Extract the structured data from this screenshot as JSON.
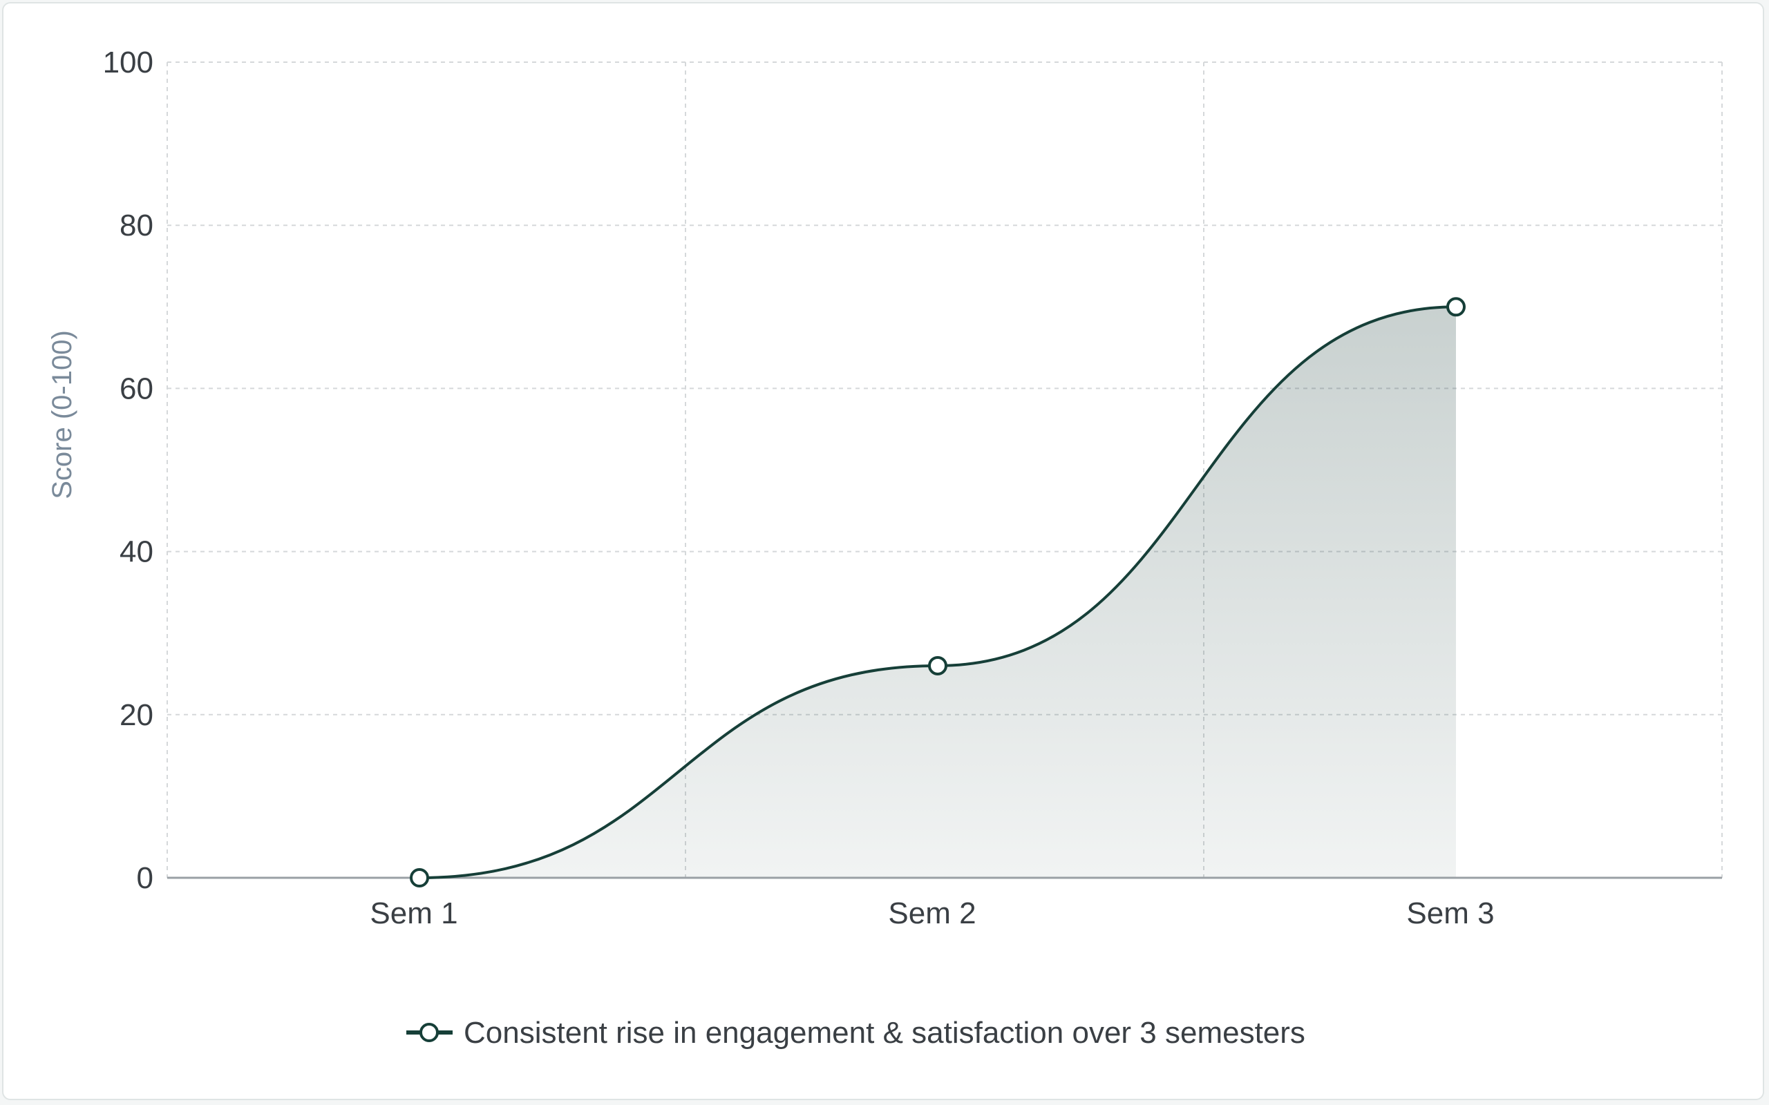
{
  "chart_data": {
    "type": "area",
    "categories": [
      "Sem 1",
      "Sem 2",
      "Sem 3"
    ],
    "series": [
      {
        "name": "Consistent rise in engagement & satisfaction over 3 semesters",
        "values": [
          0,
          26,
          70
        ]
      }
    ],
    "ylabel": "Score (0-100)",
    "xlabel": "",
    "ylim": [
      0,
      100
    ],
    "yticks": [
      0,
      20,
      40,
      60,
      80,
      100
    ],
    "grid": true,
    "legend_position": "bottom",
    "colors": {
      "line": "#163f38",
      "area": "#1c3f3a",
      "marker_fill": "#ffffff",
      "axis": "#9aa0a5"
    }
  }
}
